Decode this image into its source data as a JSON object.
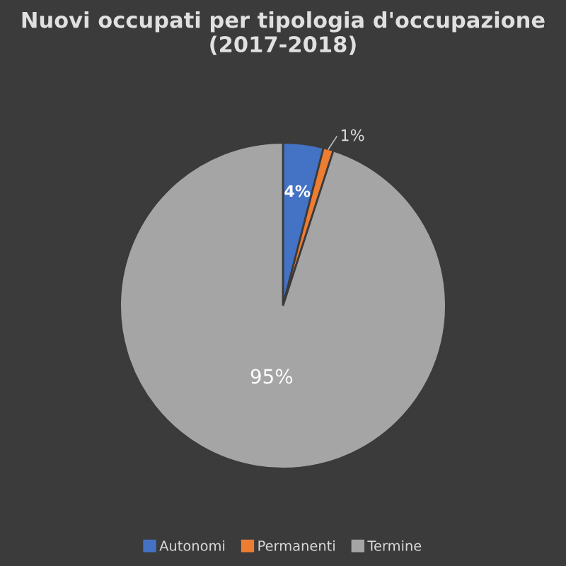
{
  "chart_data": {
    "type": "pie",
    "title": "Nuovi occupati per tipologia d'occupazione\n(2017-2018)",
    "categories": [
      "Autonomi",
      "Permanenti",
      "Termine"
    ],
    "values": [
      4,
      1,
      95
    ],
    "colors": [
      "#4472c4",
      "#ed7d31",
      "#a5a5a5"
    ],
    "value_labels": [
      "4%",
      "1%",
      "95%"
    ],
    "legend": "bottom"
  }
}
